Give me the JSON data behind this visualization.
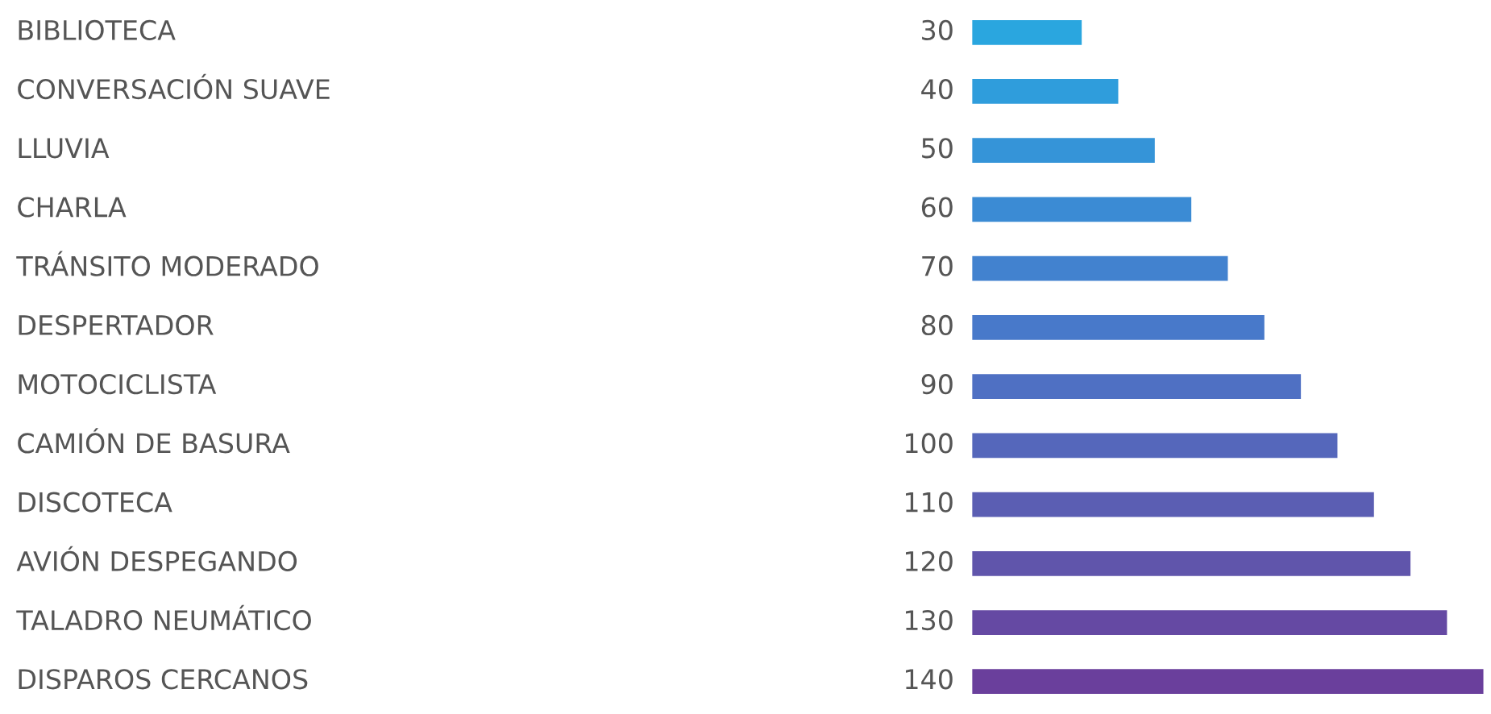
{
  "chart_data": {
    "type": "bar",
    "orientation": "horizontal",
    "data_labels": true,
    "categories": [
      "BIBLIOTECA",
      "CONVERSACIÓN SUAVE",
      "LLUVIA",
      "CHARLA",
      "TRÁNSITO MODERADO",
      "DESPERTADOR",
      "MOTOCICLISTA",
      "CAMIÓN DE BASURA",
      "DISCOTECA",
      "AVIÓN DESPEGANDO",
      "TALADRO NEUMÁTICO",
      "DISPAROS CERCANOS"
    ],
    "values": [
      30,
      40,
      50,
      60,
      70,
      80,
      90,
      100,
      110,
      120,
      130,
      140
    ],
    "colors": [
      "#2aa6df",
      "#2f9ddc",
      "#3594d8",
      "#3b8bd4",
      "#4282cf",
      "#4879ca",
      "#4f70c3",
      "#5567bb",
      "#5b5eb3",
      "#6055ab",
      "#6549a3",
      "#6a3f9c"
    ]
  }
}
